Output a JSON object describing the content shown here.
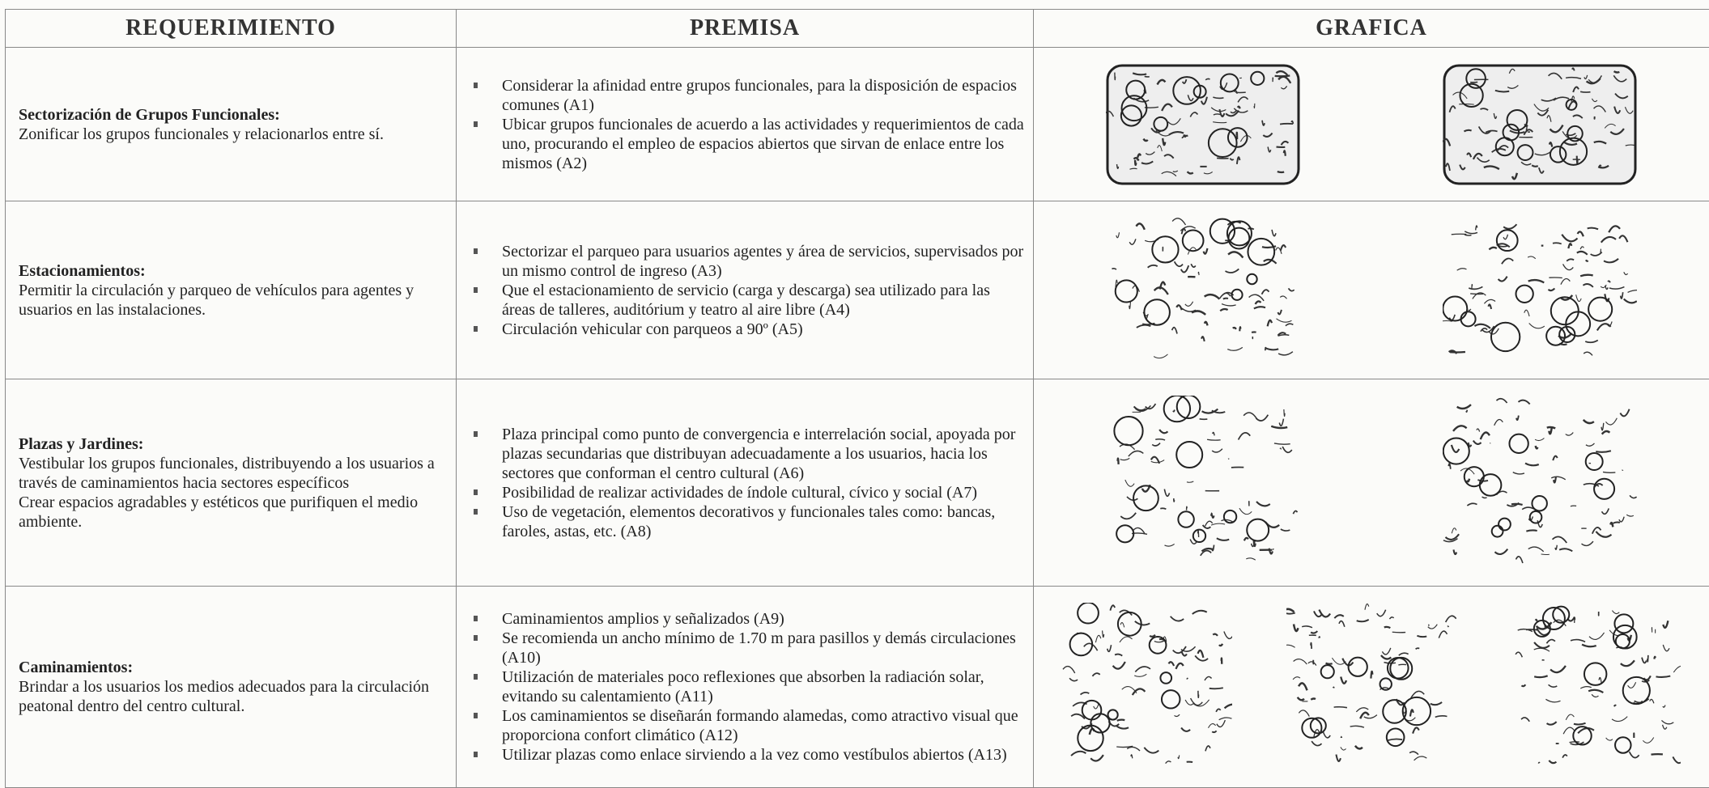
{
  "header": {
    "columns": [
      "REQUERIMIENTO",
      "PREMISA",
      "GRAFICA"
    ]
  },
  "rows": [
    {
      "title": "Sectorización de Grupos Funcionales:",
      "description": [
        "Zonificar los grupos funcionales y relacionarlos entre sí."
      ],
      "premises": [
        "Considerar la afinidad entre grupos funcionales, para la disposición de espacios comunes (A1)",
        "Ubicar grupos funcionales de acuerdo a las actividades y requerimientos de cada uno, procurando el empleo de espacios abiertos que sirvan de enlace entre los mismos (A2)"
      ]
    },
    {
      "title": "Estacionamientos:",
      "description": [
        "Permitir la circulación y parqueo de vehículos para agentes y usuarios en las instalaciones."
      ],
      "premises": [
        "Sectorizar el parqueo para usuarios agentes y área de servicios, supervisados por un mismo control de ingreso (A3)",
        "Que el estacionamiento de servicio (carga y descarga) sea utilizado para las áreas de talleres, auditórium y teatro al aire libre (A4)",
        "Circulación vehicular con parqueos a 90º (A5)"
      ]
    },
    {
      "title": "Plazas y Jardines:",
      "description": [
        "Vestibular los grupos funcionales, distribuyendo a los usuarios a través de caminamientos hacia sectores específicos",
        "Crear espacios agradables y estéticos que purifiquen el medio ambiente."
      ],
      "premises": [
        "Plaza principal como punto de convergencia e interrelación social, apoyada por plazas secundarias que distribuyan adecuadamente a los usuarios, hacia los sectores que conforman el centro cultural (A6)",
        "Posibilidad de realizar actividades de índole cultural, cívico y social (A7)",
        "Uso de vegetación, elementos decorativos y funcionales tales como: bancas, faroles, astas, etc. (A8)"
      ]
    },
    {
      "title": "Caminamientos:",
      "description": [
        "Brindar a los usuarios los medios adecuados para la circulación peatonal dentro del centro cultural."
      ],
      "premises": [
        "Caminamientos amplios y señalizados (A9)",
        "Se recomienda un ancho mínimo de 1.70 m para pasillos y demás circulaciones (A10)",
        "Utilización de materiales poco reflexiones que absorben la radiación solar, evitando su calentamiento (A11)",
        "Los caminamientos se diseñarán formando alamedas, como atractivo visual que proporciona confort climático (A12)",
        "Utilizar plazas como enlace sirviendo a la vez como vestíbulos abiertos (A13)"
      ]
    }
  ]
}
